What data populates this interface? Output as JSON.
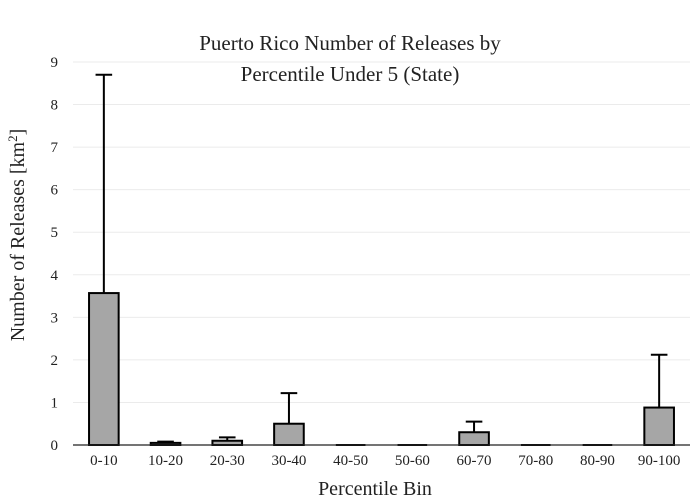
{
  "chart_data": {
    "type": "bar",
    "title_lines": [
      "Puerto Rico Number of Releases by",
      "Percentile Under 5 (State)"
    ],
    "xlabel": "Percentile Bin",
    "ylabel_main": "Number of Releases  [km",
    "ylabel_sup": "2",
    "ylabel_close": "]",
    "categories": [
      "0-10",
      "10-20",
      "20-30",
      "30-40",
      "40-50",
      "50-60",
      "60-70",
      "70-80",
      "80-90",
      "90-100"
    ],
    "values": [
      3.57,
      0.05,
      0.1,
      0.5,
      0,
      0,
      0.3,
      0,
      0,
      0.88
    ],
    "error_upper": [
      8.7,
      0.08,
      0.18,
      1.22,
      0,
      0,
      0.55,
      0,
      0,
      2.12
    ],
    "ylim": [
      0,
      9
    ],
    "yticks": [
      "0",
      "1",
      "2",
      "3",
      "4",
      "5",
      "6",
      "7",
      "8",
      "9"
    ],
    "grid": true,
    "bar_color": "#a6a6a6"
  }
}
